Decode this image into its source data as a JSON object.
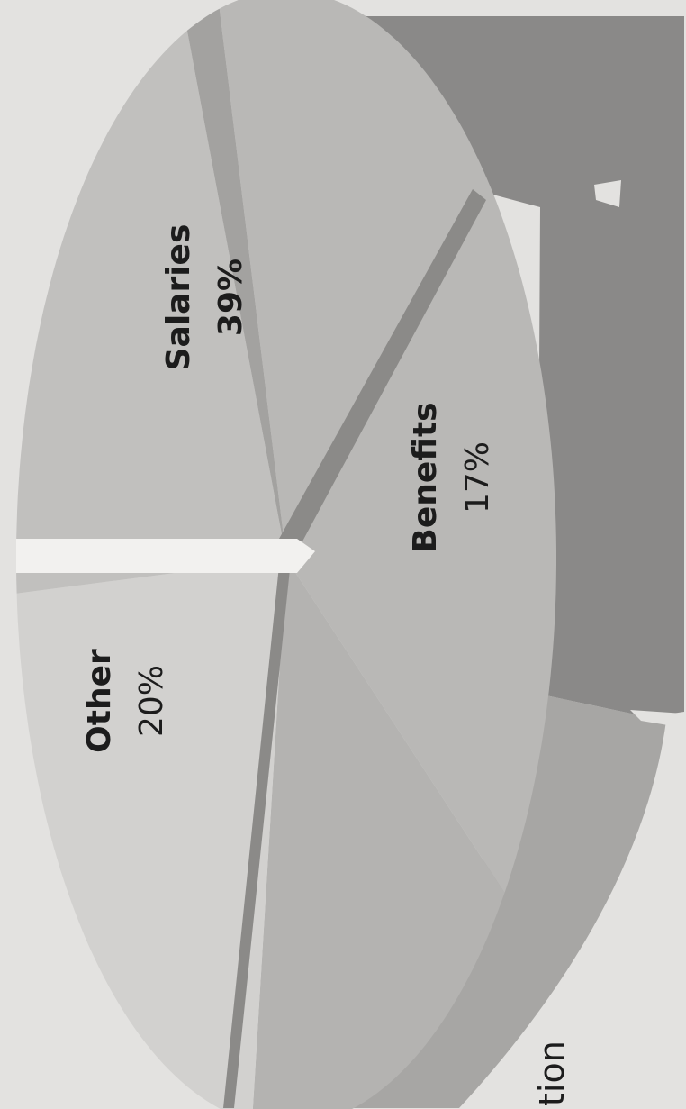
{
  "chart_data": {
    "type": "pie",
    "three_d": true,
    "orientation": "rotated-90-clockwise",
    "slices": [
      {
        "name": "Salaries",
        "value": 39,
        "label": "39%",
        "color": "#b9b8b6"
      },
      {
        "name": "Benefits",
        "value": 17,
        "label": "17%",
        "color": "#b4b3b1"
      },
      {
        "name": "",
        "value": 22,
        "label": "",
        "color": "#d2d1cf"
      },
      {
        "name": "Other",
        "value": 20,
        "label": "20%",
        "color": "#c1c0be"
      },
      {
        "name": "",
        "value": 2,
        "label": "",
        "color": "#a3a2a0"
      }
    ],
    "partial_label_text": "tion",
    "legend": "none",
    "colors": {
      "background": "#e3e2e0",
      "side_dark": "#8a8988",
      "side_light": "#a7a6a4",
      "divider": "#8b8a88"
    }
  }
}
